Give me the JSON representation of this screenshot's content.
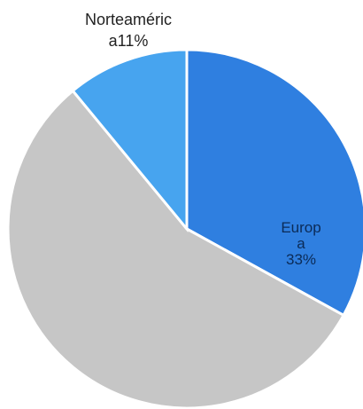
{
  "chart_data": {
    "type": "pie",
    "title": "",
    "slices": [
      {
        "label": "Europa",
        "display_label": [
          "Europ",
          "a"
        ],
        "value": 33,
        "value_label": "33%",
        "color": "#2f7fe0"
      },
      {
        "label": "",
        "display_label": [],
        "value": 56,
        "value_label": "",
        "color": "#c6c6c6"
      },
      {
        "label": "Norteamérica",
        "display_label": [
          "Norteaméric",
          "a11%"
        ],
        "value": 11,
        "value_label": "",
        "color": "#47a4ef"
      }
    ],
    "start_angle_deg": 0,
    "direction": "clockwise",
    "legend": "none"
  }
}
